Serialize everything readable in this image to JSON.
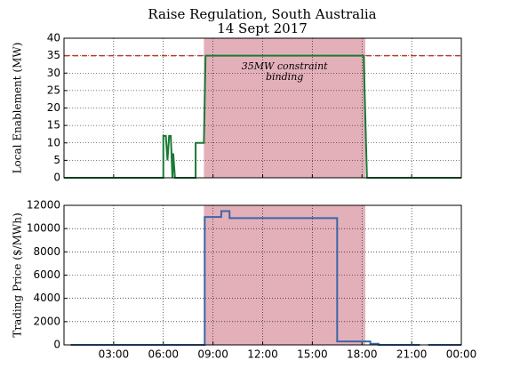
{
  "title": "Raise Regulation, South Australia",
  "subtitle": "14 Sept 2017",
  "chart_data": [
    {
      "type": "line",
      "ylabel": "Local Enablement (MW)",
      "x": [
        0,
        6.0,
        6.0,
        6.15,
        6.25,
        6.35,
        6.45,
        6.55,
        6.6,
        6.7,
        7.95,
        7.95,
        8.45,
        8.55,
        18.1,
        18.3,
        24
      ],
      "series": [
        {
          "color": "#1a7a35",
          "values": [
            0,
            0,
            12,
            12,
            5,
            12,
            12,
            0,
            7,
            0,
            0,
            10,
            10,
            35,
            35,
            0,
            0
          ]
        }
      ],
      "xlim": [
        0,
        24
      ],
      "xticks": [
        {
          "value": 3,
          "label": "03:00"
        },
        {
          "value": 6,
          "label": "06:00"
        },
        {
          "value": 9,
          "label": "09:00"
        },
        {
          "value": 12,
          "label": "12:00"
        },
        {
          "value": 15,
          "label": "15:00"
        },
        {
          "value": 18,
          "label": "18:00"
        },
        {
          "value": 21,
          "label": "21:00"
        },
        {
          "value": 24,
          "label": "00:00"
        }
      ],
      "ylim": [
        0,
        40
      ],
      "yticks": [
        0,
        5,
        10,
        15,
        20,
        25,
        30,
        35,
        40
      ],
      "grid": true,
      "shade": [
        8.45,
        18.2
      ],
      "shade_color": "#e3b0ba",
      "hline": 35,
      "hline_color": "#c0392b",
      "annotation": [
        "35MW constraint",
        "binding"
      ]
    },
    {
      "type": "line",
      "ylabel": "Trading Price ($/MWh)",
      "x": [
        0.4,
        8.5,
        8.5,
        9.5,
        9.5,
        10.0,
        10.0,
        16.5,
        16.5,
        18.5,
        18.5,
        19.0,
        19.0,
        21.5,
        21.75,
        22.0,
        24
      ],
      "series": [
        {
          "color": "#3a67a8",
          "values": [
            0,
            0,
            11000,
            11000,
            11500,
            11500,
            10900,
            10900,
            300,
            300,
            100,
            100,
            0,
            0,
            null,
            0,
            0
          ]
        }
      ],
      "xlim": [
        0,
        24
      ],
      "xticks": [
        {
          "value": 3,
          "label": "03:00"
        },
        {
          "value": 6,
          "label": "06:00"
        },
        {
          "value": 9,
          "label": "09:00"
        },
        {
          "value": 12,
          "label": "12:00"
        },
        {
          "value": 15,
          "label": "15:00"
        },
        {
          "value": 18,
          "label": "18:00"
        },
        {
          "value": 21,
          "label": "21:00"
        },
        {
          "value": 24,
          "label": "00:00"
        }
      ],
      "ylim": [
        0,
        12000
      ],
      "yticks": [
        0,
        2000,
        4000,
        6000,
        8000,
        10000,
        12000
      ],
      "grid": true,
      "shade": [
        8.45,
        18.2
      ],
      "shade_color": "#e3b0ba"
    }
  ]
}
